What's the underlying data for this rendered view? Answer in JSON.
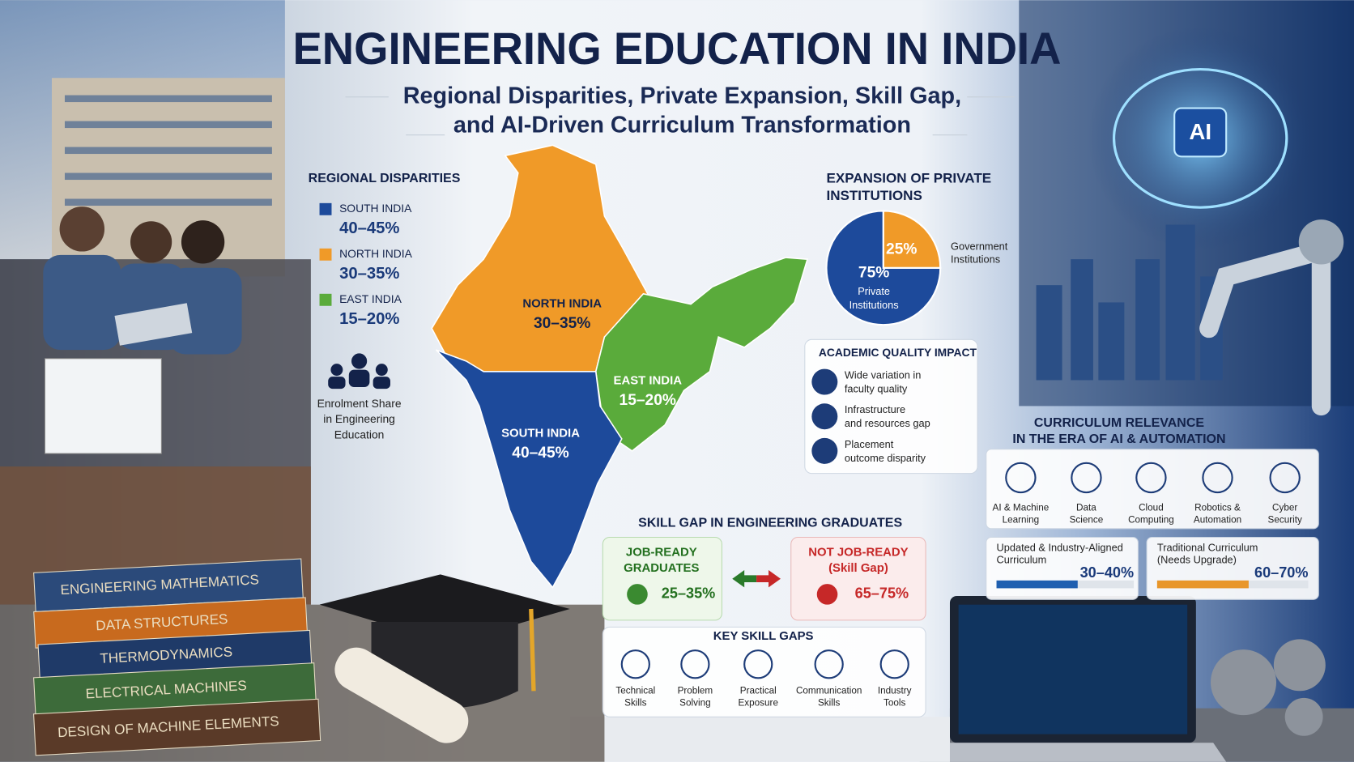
{
  "header": {
    "title": "ENGINEERING EDUCATION IN INDIA",
    "subtitle_lines": [
      "Regional Disparities, Private Expansion, Skill Gap,",
      "and AI-Driven Curriculum Transformation"
    ]
  },
  "regional": {
    "title": "REGIONAL DISPARITIES",
    "items": [
      {
        "name": "SOUTH INDIA",
        "share": "40–45%",
        "color": "#1d4a9b"
      },
      {
        "name": "NORTH INDIA",
        "share": "30–35%",
        "color": "#f09a28"
      },
      {
        "name": "EAST INDIA",
        "share": "15–20%",
        "color": "#5aab3b"
      }
    ],
    "caption_lines": [
      "Enrolment Share",
      "in Engineering",
      "Education"
    ]
  },
  "map": {
    "regions": [
      {
        "name": "NORTH INDIA",
        "share": "30–35%"
      },
      {
        "name": "EAST INDIA",
        "share": "15–20%"
      },
      {
        "name": "SOUTH INDIA",
        "share": "40–45%"
      }
    ]
  },
  "private": {
    "title_lines": [
      "EXPANSION OF PRIVATE",
      "INSTITUTIONS"
    ],
    "pie": {
      "type": "pie",
      "series": [
        {
          "name_lines": [
            "Private",
            "Institutions"
          ],
          "value": 75,
          "value_label": "75%",
          "color": "#1d4a9b"
        },
        {
          "name_lines": [
            "Government",
            "Institutions"
          ],
          "value": 25,
          "value_label": "25%",
          "color": "#f09a28"
        }
      ]
    }
  },
  "quality": {
    "title": "ACADEMIC QUALITY IMPACT",
    "items": [
      [
        "Wide variation in",
        "faculty quality"
      ],
      [
        "Infrastructure",
        "and resources gap"
      ],
      [
        "Placement",
        "outcome disparity"
      ]
    ]
  },
  "curriculum": {
    "title_lines": [
      "CURRICULUM RELEVANCE",
      "IN THE ERA OF AI & AUTOMATION"
    ],
    "areas": [
      [
        "AI & Machine",
        "Learning"
      ],
      [
        "Data",
        "Science"
      ],
      [
        "Cloud",
        "Computing"
      ],
      [
        "Robotics &",
        "Automation"
      ],
      [
        "Cyber",
        "Security"
      ]
    ],
    "comparison": [
      {
        "label_lines": [
          "Updated & Industry-Aligned",
          "Curriculum"
        ],
        "share": "30–40%",
        "color": "#1f5fb0"
      },
      {
        "label_lines": [
          "Traditional Curriculum",
          "(Needs Upgrade)"
        ],
        "share": "60–70%",
        "color": "#e8962a"
      }
    ]
  },
  "skill_gap": {
    "title": "SKILL GAP IN ENGINEERING GRADUATES",
    "ready": {
      "label_lines": [
        "JOB-READY",
        "GRADUATES"
      ],
      "share": "25–35%"
    },
    "not_ready": {
      "label_lines": [
        "NOT JOB-READY",
        "(Skill Gap)"
      ],
      "share": "65–75%"
    },
    "key_title": "KEY SKILL GAPS",
    "key_items": [
      [
        "Technical",
        "Skills"
      ],
      [
        "Problem",
        "Solving"
      ],
      [
        "Practical",
        "Exposure"
      ],
      [
        "Communication",
        "Skills"
      ],
      [
        "Industry",
        "Tools"
      ]
    ]
  },
  "books": [
    "ENGINEERING MATHEMATICS",
    "DATA STRUCTURES",
    "THERMODYNAMICS",
    "ELECTRICAL MACHINES",
    "DESIGN OF MACHINE ELEMENTS"
  ],
  "ai_badge": "AI"
}
